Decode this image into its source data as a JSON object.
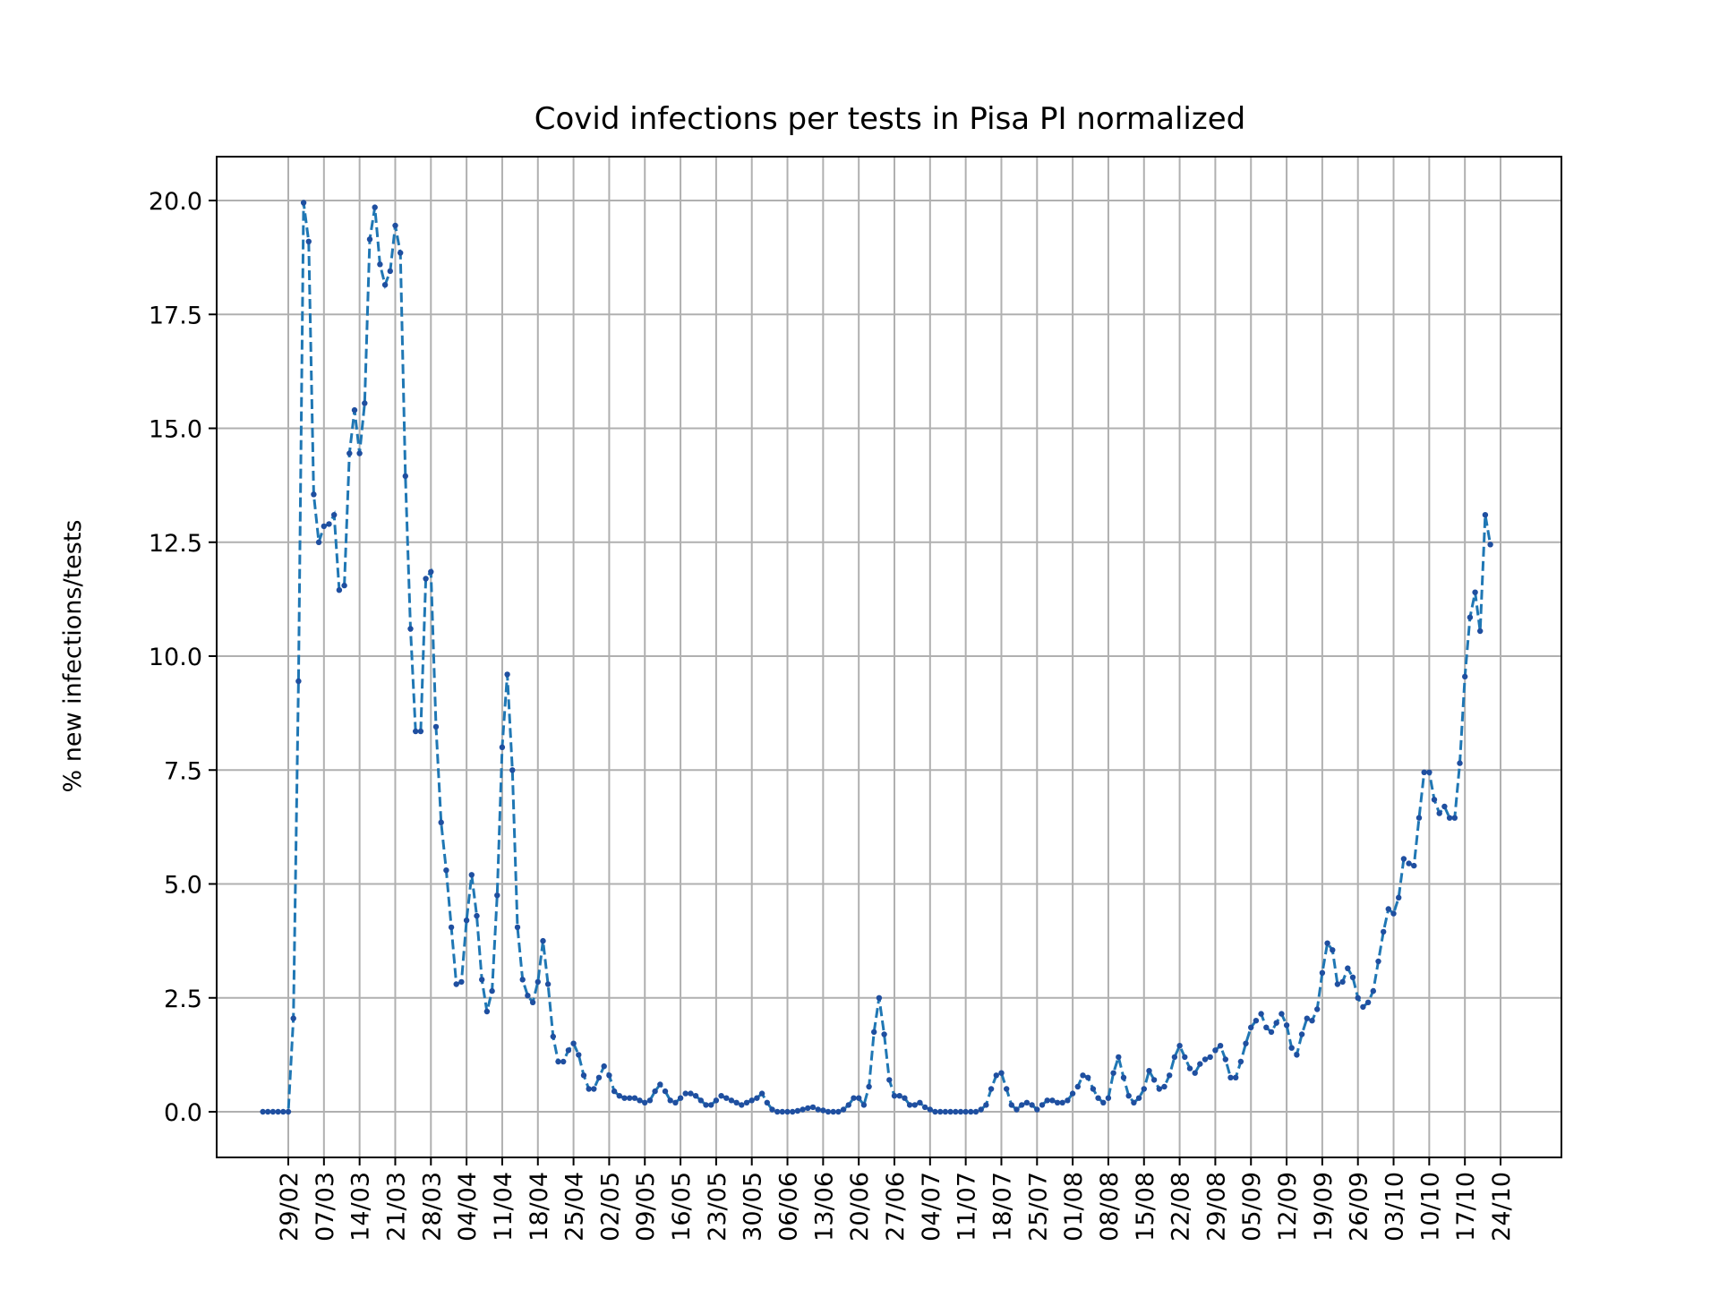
{
  "chart_data": {
    "type": "line",
    "title": "Covid infections per tests in Pisa PI normalized",
    "xlabel": "",
    "ylabel": "% new infections/tests",
    "x_start": "24/02",
    "x_ticks": [
      "29/02",
      "07/03",
      "14/03",
      "21/03",
      "28/03",
      "04/04",
      "11/04",
      "18/04",
      "25/04",
      "02/05",
      "09/05",
      "16/05",
      "23/05",
      "30/05",
      "06/06",
      "13/06",
      "20/06",
      "27/06",
      "04/07",
      "11/07",
      "18/07",
      "25/07",
      "01/08",
      "08/08",
      "15/08",
      "22/08",
      "29/08",
      "05/09",
      "12/09",
      "19/09",
      "26/09",
      "03/10",
      "10/10",
      "17/10",
      "24/10"
    ],
    "y_ticks": [
      "0.0",
      "2.5",
      "5.0",
      "7.5",
      "10.0",
      "12.5",
      "15.0",
      "17.5",
      "20.0"
    ],
    "ylim": [
      -1,
      21
    ],
    "grid": true,
    "line_style": "dashed",
    "colors": {
      "line": "#1f77b4",
      "marker": "#1f4fa0",
      "grid": "#b0b0b0"
    },
    "series": [
      {
        "values": [
          0,
          0,
          0,
          0,
          0,
          0,
          2.05,
          9.45,
          19.95,
          19.1,
          13.55,
          12.5,
          12.85,
          12.9,
          13.1,
          11.45,
          11.55,
          14.45,
          15.4,
          14.45,
          15.55,
          19.15,
          19.85,
          18.6,
          18.15,
          18.45,
          19.45,
          18.85,
          13.95,
          10.6,
          8.35,
          8.35,
          11.7,
          11.85,
          8.45,
          6.35,
          5.3,
          4.05,
          2.8,
          2.85,
          4.2,
          5.2,
          4.3,
          2.9,
          2.2,
          2.65,
          4.75,
          8.0,
          9.6,
          7.5,
          4.05,
          2.9,
          2.55,
          2.4,
          2.85,
          3.75,
          2.8,
          1.65,
          1.1,
          1.1,
          1.35,
          1.5,
          1.25,
          0.8,
          0.5,
          0.5,
          0.75,
          1.0,
          0.8,
          0.45,
          0.35,
          0.3,
          0.3,
          0.3,
          0.25,
          0.2,
          0.25,
          0.45,
          0.6,
          0.45,
          0.25,
          0.2,
          0.3,
          0.4,
          0.4,
          0.35,
          0.25,
          0.15,
          0.15,
          0.25,
          0.35,
          0.3,
          0.25,
          0.2,
          0.15,
          0.2,
          0.25,
          0.3,
          0.4,
          0.2,
          0.05,
          0.0,
          0.0,
          0.0,
          0.0,
          0.02,
          0.05,
          0.08,
          0.1,
          0.05,
          0.03,
          0.0,
          0.0,
          0.0,
          0.05,
          0.15,
          0.3,
          0.3,
          0.15,
          0.55,
          1.75,
          2.5,
          1.7,
          0.7,
          0.35,
          0.35,
          0.3,
          0.15,
          0.15,
          0.2,
          0.1,
          0.05,
          0.0,
          0.0,
          0.0,
          0.0,
          0.0,
          0.0,
          0.0,
          0.0,
          0.0,
          0.05,
          0.15,
          0.5,
          0.8,
          0.85,
          0.5,
          0.15,
          0.05,
          0.15,
          0.2,
          0.15,
          0.05,
          0.15,
          0.25,
          0.25,
          0.2,
          0.2,
          0.25,
          0.4,
          0.55,
          0.8,
          0.75,
          0.5,
          0.3,
          0.2,
          0.3,
          0.85,
          1.2,
          0.75,
          0.35,
          0.2,
          0.3,
          0.5,
          0.9,
          0.7,
          0.5,
          0.55,
          0.8,
          1.2,
          1.45,
          1.2,
          0.95,
          0.85,
          1.05,
          1.15,
          1.2,
          1.35,
          1.45,
          1.15,
          0.75,
          0.75,
          1.1,
          1.5,
          1.85,
          2.0,
          2.15,
          1.85,
          1.75,
          1.95,
          2.15,
          1.9,
          1.4,
          1.25,
          1.7,
          2.05,
          2.0,
          2.25,
          3.05,
          3.7,
          3.55,
          2.8,
          2.85,
          3.15,
          2.95,
          2.5,
          2.3,
          2.4,
          2.65,
          3.3,
          3.95,
          4.45,
          4.35,
          4.7,
          5.55,
          5.45,
          5.4,
          6.45,
          7.45,
          7.45,
          6.85,
          6.55,
          6.7,
          6.45,
          6.45,
          7.65,
          9.55,
          10.85,
          11.4,
          10.55,
          13.1,
          12.45
        ]
      }
    ]
  }
}
